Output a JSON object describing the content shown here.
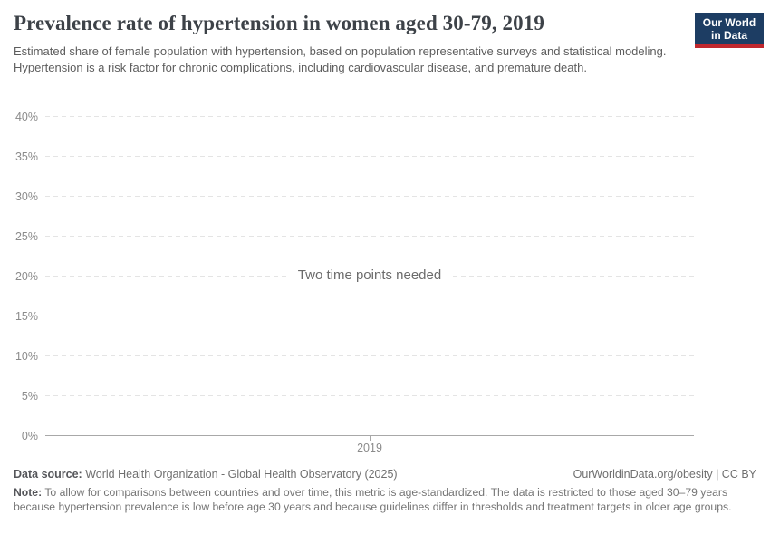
{
  "header": {
    "logo": {
      "line1": "Our World",
      "line2": "in Data",
      "bg_color": "#1d3d63",
      "accent_color": "#c0272d"
    }
  },
  "chart_data": {
    "type": "line",
    "title": "Prevalence rate of hypertension in women aged 30-79, 2019",
    "subtitle": "Estimated share of female population with hypertension, based on population representative surveys and statistical modeling. Hypertension is a risk factor for chronic complications, including cardiovascular disease, and premature death.",
    "series": [],
    "empty_message": "Two time points needed",
    "xlabel": "",
    "ylabel": "",
    "ylim": [
      0,
      40
    ],
    "yticks": [
      {
        "v": 0,
        "label": "0%"
      },
      {
        "v": 5,
        "label": "5%"
      },
      {
        "v": 10,
        "label": "10%"
      },
      {
        "v": 15,
        "label": "15%"
      },
      {
        "v": 20,
        "label": "20%"
      },
      {
        "v": 25,
        "label": "25%"
      },
      {
        "v": 30,
        "label": "30%"
      },
      {
        "v": 35,
        "label": "35%"
      },
      {
        "v": 40,
        "label": "40%"
      }
    ],
    "xticks": [
      "2019"
    ],
    "grid": "horizontal-dashed",
    "legend": "none"
  },
  "footer": {
    "source_label": "Data source:",
    "source_value": " World Health Organization - Global Health Observatory (2025)",
    "attribution": "OurWorldinData.org/obesity | CC BY",
    "note_label": "Note:",
    "note_value": " To allow for comparisons between countries and over time, this metric is age-standardized. The data is restricted to those aged 30–79 years because hypertension prevalence is low before age 30 years and because guidelines differ in thresholds and treatment targets in older age groups."
  }
}
